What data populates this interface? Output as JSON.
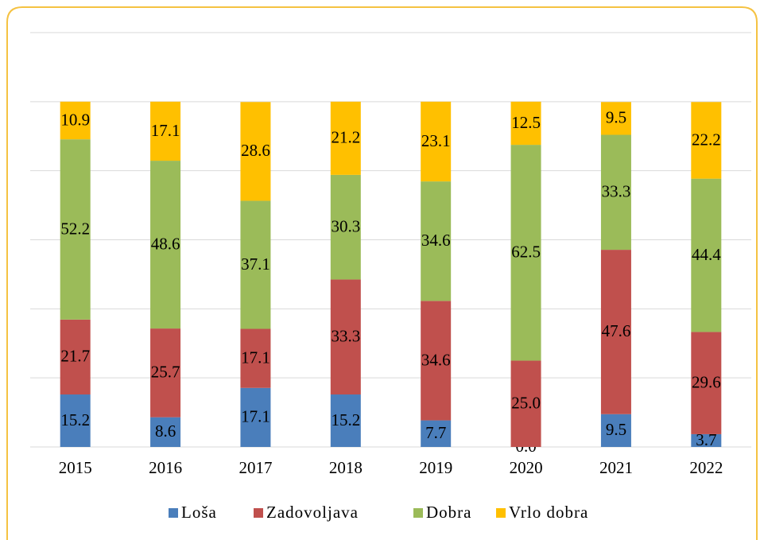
{
  "chart_data": {
    "type": "stacked_bar",
    "categories": [
      "2015",
      "2016",
      "2017",
      "2018",
      "2019",
      "2020",
      "2021",
      "2022"
    ],
    "series": [
      {
        "name": "Loša",
        "color": "#4a7ebb",
        "values": [
          15.2,
          8.6,
          17.1,
          15.2,
          7.7,
          0,
          9.5,
          3.7
        ],
        "value_labels": [
          "15.2",
          "8.6",
          "17.1",
          "15.2",
          "7.7",
          "0.0",
          "9.5",
          "3.7"
        ]
      },
      {
        "name": "Zadovoljava",
        "color": "#c0504d",
        "values": [
          21.7,
          25.7,
          17.1,
          33.3,
          34.6,
          25,
          47.6,
          29.6
        ],
        "value_labels": [
          "21.7",
          "25.7",
          "17.1",
          "33.3",
          "34.6",
          "25.0",
          "47.6",
          "29.6"
        ]
      },
      {
        "name": "Dobra",
        "color": "#9bbb59",
        "values": [
          52.2,
          48.6,
          37.1,
          30.3,
          34.6,
          62.5,
          33.3,
          44.4
        ],
        "value_labels": [
          "52.2",
          "48.6",
          "37.1",
          "30.3",
          "34.6",
          "62.5",
          "33.3",
          "44.4"
        ]
      },
      {
        "name": "Vrlo dobra",
        "color": "#ffc000",
        "values": [
          10.9,
          17.1,
          28.6,
          21.2,
          23.1,
          12.5,
          9.5,
          22.2
        ],
        "value_labels": [
          "10.9",
          "17.1",
          "28.6",
          "21.2",
          "23.1",
          "12.5",
          "9.5",
          "22.2"
        ]
      }
    ],
    "ylim": [
      0,
      120
    ],
    "yticks": [
      0,
      20,
      40,
      60,
      80,
      100,
      120
    ],
    "grid": true,
    "legend": "bottom"
  }
}
